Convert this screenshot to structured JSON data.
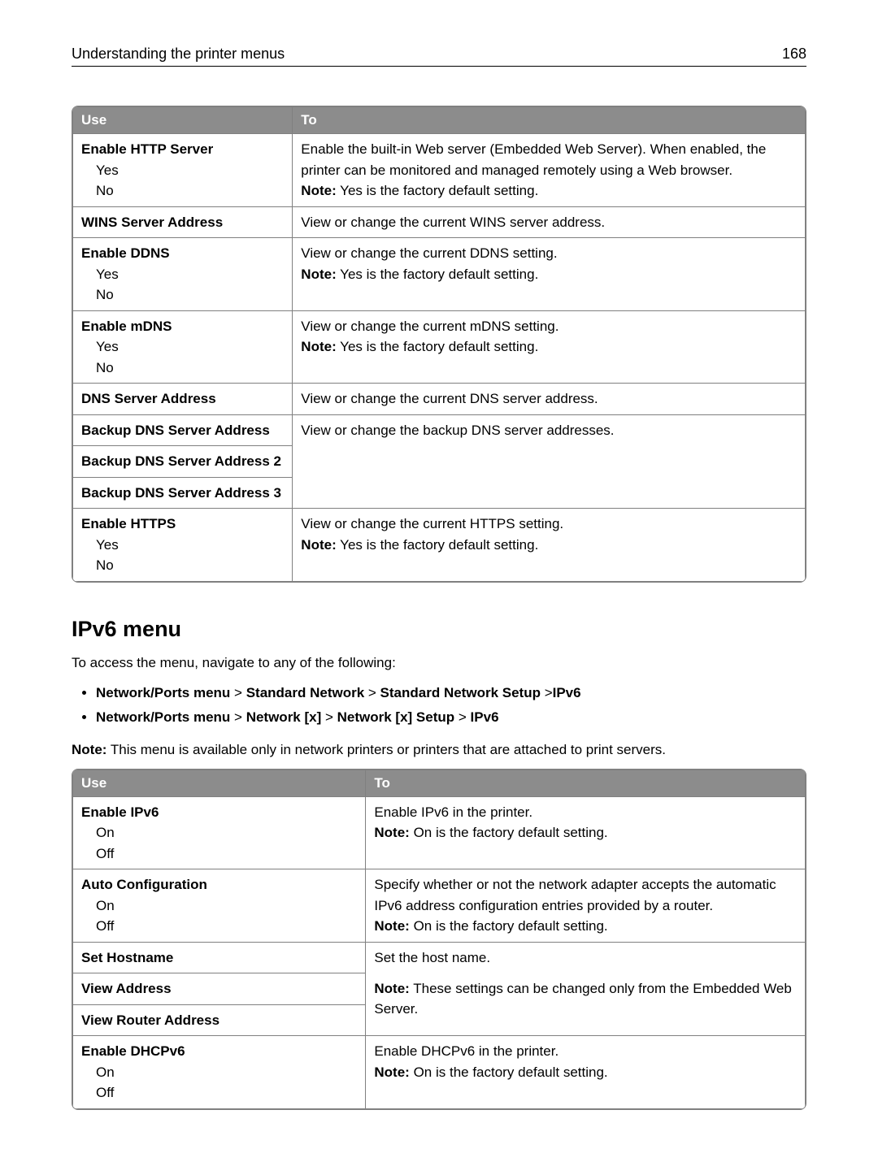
{
  "header": {
    "title": "Understanding the printer menus",
    "page_number": "168"
  },
  "table1": {
    "headers": {
      "use": "Use",
      "to": "To"
    },
    "rows": [
      {
        "use_title": "Enable HTTP Server",
        "use_opts": [
          "Yes",
          "No"
        ],
        "to_lines": [
          {
            "text": "Enable the built-in Web server (Embedded Web Server). When enabled, the printer can be monitored and managed remotely using a Web browser."
          },
          {
            "note": "Note:",
            "text": " Yes is the factory default setting."
          }
        ]
      },
      {
        "use_title": "WINS Server Address",
        "use_opts": [],
        "to_lines": [
          {
            "text": "View or change the current WINS server address."
          }
        ]
      },
      {
        "use_title": "Enable DDNS",
        "use_opts": [
          "Yes",
          "No"
        ],
        "to_lines": [
          {
            "text": "View or change the current DDNS setting."
          },
          {
            "note": "Note:",
            "text": " Yes is the factory default setting."
          }
        ]
      },
      {
        "use_title": "Enable mDNS",
        "use_opts": [
          "Yes",
          "No"
        ],
        "to_lines": [
          {
            "text": "View or change the current mDNS setting."
          },
          {
            "note": "Note:",
            "text": " Yes is the factory default setting."
          }
        ]
      },
      {
        "use_title": "DNS Server Address",
        "use_opts": [],
        "to_lines": [
          {
            "text": "View or change the current DNS server address."
          }
        ]
      },
      {
        "use_title": "Backup DNS Server Address",
        "use_opts": [],
        "to_lines": [
          {
            "text": "View or change the backup DNS server addresses."
          }
        ],
        "merge_down": true
      },
      {
        "use_title": "Backup DNS Server Address 2",
        "use_opts": [],
        "merge_continue": true
      },
      {
        "use_title": "Backup DNS Server Address 3",
        "use_opts": [],
        "merge_continue": true
      },
      {
        "use_title": "Enable HTTPS",
        "use_opts": [
          "Yes",
          "No"
        ],
        "to_lines": [
          {
            "text": "View or change the current HTTPS setting."
          },
          {
            "note": "Note:",
            "text": " Yes is the factory default setting."
          }
        ]
      }
    ]
  },
  "section": {
    "title": "IPv6 menu",
    "intro": "To access the menu, navigate to any of the following:",
    "nav": [
      {
        "parts": [
          "Network/Ports menu",
          " > ",
          "Standard Network",
          " > ",
          "Standard Network Setup",
          " >",
          "IPv6"
        ]
      },
      {
        "parts": [
          "Network/Ports menu",
          " > ",
          "Network [x]",
          " > ",
          "Network [x] Setup",
          " > ",
          "IPv6"
        ]
      }
    ],
    "note_label": "Note:",
    "note_text": " This menu is available only in network printers or printers that are attached to print servers."
  },
  "table2": {
    "headers": {
      "use": "Use",
      "to": "To"
    },
    "rows": [
      {
        "use_title": "Enable IPv6",
        "use_opts": [
          "On",
          "Off"
        ],
        "to_lines": [
          {
            "text": "Enable IPv6 in the printer."
          },
          {
            "note": "Note:",
            "text": " On is the factory default setting."
          }
        ]
      },
      {
        "use_title": "Auto Configuration",
        "use_opts": [
          "On",
          "Off"
        ],
        "to_lines": [
          {
            "text": "Specify whether or not the network adapter accepts the automatic IPv6 address configuration entries provided by a router."
          },
          {
            "note": "Note:",
            "text": " On is the factory default setting."
          }
        ]
      },
      {
        "use_title": "Set Hostname",
        "use_opts": [],
        "to_lines": [
          {
            "text": "Set the host name."
          }
        ],
        "merge_down_to": true
      },
      {
        "use_title": "View Address",
        "use_opts": [],
        "to_lines": [
          {
            "note": "Note:",
            "text": " These settings can be changed only from the Embedded Web Server."
          }
        ],
        "merge_continue_to": true
      },
      {
        "use_title": "View Router Address",
        "use_opts": [],
        "merge_continue_to": true
      },
      {
        "use_title": "Enable DHCPv6",
        "use_opts": [
          "On",
          "Off"
        ],
        "to_lines": [
          {
            "text": "Enable DHCPv6 in the printer."
          },
          {
            "note": "Note:",
            "text": " On is the factory default setting."
          }
        ]
      }
    ]
  }
}
